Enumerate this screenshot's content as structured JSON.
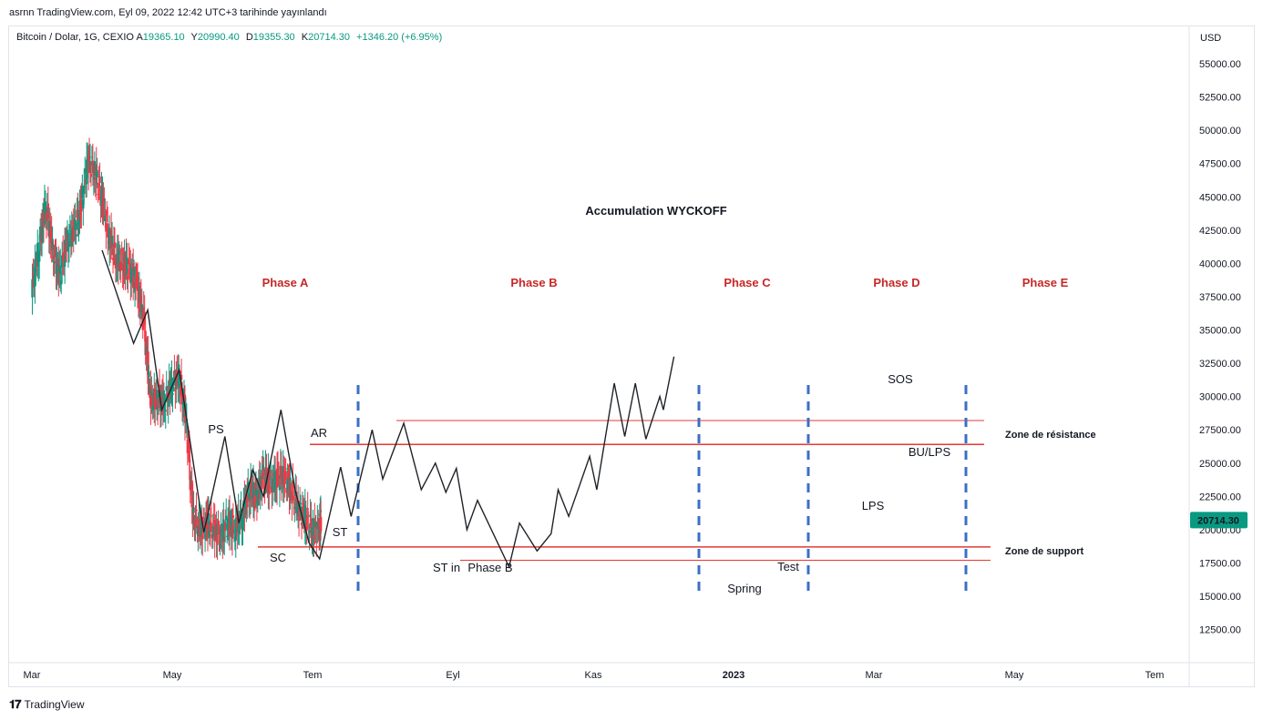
{
  "header": {
    "publish_line": "asrnn TradingView.com, Eyl 09, 2022 12:42 UTC+3 tarihinde yayınlandı",
    "symbol": "Bitcoin / Dolar, 1G, CEXIO",
    "open_label": "A",
    "open": "19365.10",
    "high_label": "Y",
    "high": "20990.40",
    "low_label": "D",
    "low": "19355.30",
    "close_label": "K",
    "close": "20714.30",
    "change": "+1346.20 (+6.95%)"
  },
  "footer": {
    "brand": "TradingView"
  },
  "colors": {
    "up": "#089981",
    "down": "#f23645",
    "phase": "#c62828",
    "zone_line": "#e53935",
    "divider": "#3b6fc4",
    "path": "#1f2328"
  },
  "chart_data": {
    "type": "line",
    "title": "Accumulation WYCKOFF",
    "currency": "USD",
    "last_price_label": "20714.30",
    "last_price": 20714.3,
    "ylim": [
      10000,
      57500
    ],
    "y_ticks": [
      "55000.00",
      "52500.00",
      "50000.00",
      "47500.00",
      "45000.00",
      "42500.00",
      "40000.00",
      "37500.00",
      "35000.00",
      "32500.00",
      "30000.00",
      "27500.00",
      "25000.00",
      "22500.00",
      "20000.00",
      "17500.00",
      "15000.00",
      "12500.00"
    ],
    "x_ticks": [
      "Mar",
      "May",
      "Tem",
      "Eyl",
      "Kas",
      "2023",
      "Mar",
      "May",
      "Tem"
    ],
    "phases": [
      "Phase A",
      "Phase B",
      "Phase C",
      "Phase D",
      "Phase E"
    ],
    "zones": {
      "resistance": "Zone de résistance",
      "support": "Zone de support"
    },
    "levels": {
      "resistance_upper": 28200,
      "resistance_lower": 26400,
      "support_upper": 18700,
      "support_lower": 17700
    },
    "labels": [
      "PS",
      "SC",
      "AR",
      "ST",
      "ST in",
      "Phase B",
      "Spring",
      "Test",
      "LPS",
      "SOS",
      "BU/LPS"
    ],
    "wyckoff_path": [
      [
        1.0,
        41000
      ],
      [
        1.45,
        34000
      ],
      [
        1.65,
        36500
      ],
      [
        1.85,
        29000
      ],
      [
        2.1,
        32000
      ],
      [
        2.45,
        19800
      ],
      [
        2.75,
        27000
      ],
      [
        2.95,
        20500
      ],
      [
        3.15,
        24500
      ],
      [
        3.3,
        22500
      ],
      [
        3.55,
        29000
      ],
      [
        3.75,
        23000
      ],
      [
        3.95,
        19000
      ],
      [
        4.1,
        17800
      ],
      [
        4.4,
        24700
      ],
      [
        4.55,
        21000
      ],
      [
        4.85,
        27500
      ],
      [
        5.0,
        23800
      ],
      [
        5.3,
        28000
      ],
      [
        5.55,
        23000
      ],
      [
        5.75,
        25000
      ],
      [
        5.9,
        22800
      ],
      [
        6.05,
        24600
      ],
      [
        6.2,
        20000
      ],
      [
        6.35,
        22200
      ],
      [
        6.8,
        17200
      ],
      [
        6.95,
        20500
      ],
      [
        7.2,
        18400
      ],
      [
        7.4,
        19700
      ],
      [
        7.5,
        23000
      ],
      [
        7.65,
        21000
      ],
      [
        7.95,
        25500
      ],
      [
        8.05,
        23000
      ],
      [
        8.3,
        31000
      ],
      [
        8.45,
        27000
      ],
      [
        8.6,
        31000
      ],
      [
        8.75,
        26800
      ],
      [
        8.95,
        30000
      ],
      [
        9.0,
        29000
      ],
      [
        9.15,
        33000
      ]
    ],
    "bitcoin_daily": [
      [
        0.0,
        38000
      ],
      [
        0.1,
        41000
      ],
      [
        0.2,
        44500
      ],
      [
        0.3,
        41000
      ],
      [
        0.4,
        39000
      ],
      [
        0.5,
        41500
      ],
      [
        0.6,
        42500
      ],
      [
        0.7,
        44000
      ],
      [
        0.8,
        47800
      ],
      [
        0.9,
        46800
      ],
      [
        1.0,
        45000
      ],
      [
        1.1,
        42000
      ],
      [
        1.2,
        40500
      ],
      [
        1.3,
        40000
      ],
      [
        1.4,
        39500
      ],
      [
        1.5,
        38500
      ],
      [
        1.6,
        35500
      ],
      [
        1.7,
        29500
      ],
      [
        1.8,
        30000
      ],
      [
        1.9,
        29500
      ],
      [
        2.0,
        31000
      ],
      [
        2.1,
        31500
      ],
      [
        2.2,
        28500
      ],
      [
        2.3,
        21000
      ],
      [
        2.4,
        20000
      ],
      [
        2.5,
        20500
      ],
      [
        2.6,
        20000
      ],
      [
        2.7,
        19500
      ],
      [
        2.8,
        20500
      ],
      [
        2.9,
        20000
      ],
      [
        3.0,
        21000
      ],
      [
        3.1,
        23000
      ],
      [
        3.2,
        22500
      ],
      [
        3.3,
        24000
      ],
      [
        3.4,
        23500
      ],
      [
        3.5,
        23800
      ],
      [
        3.6,
        24000
      ],
      [
        3.7,
        23000
      ],
      [
        3.8,
        21500
      ],
      [
        3.9,
        21000
      ],
      [
        4.0,
        20000
      ],
      [
        4.1,
        20000
      ],
      [
        4.12,
        20714
      ]
    ]
  }
}
